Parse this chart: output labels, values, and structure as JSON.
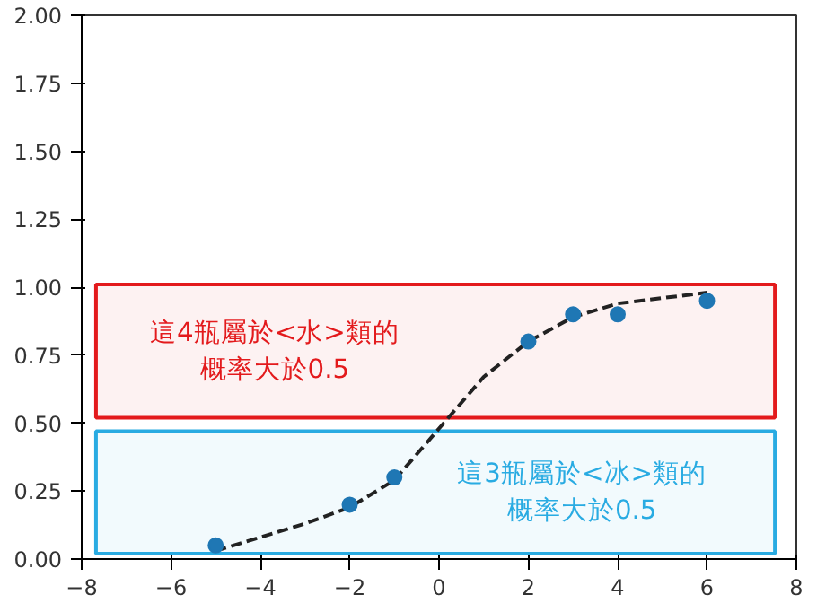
{
  "chart_data": {
    "type": "scatter",
    "xlim": [
      -8,
      8
    ],
    "ylim": [
      0,
      2
    ],
    "xticks": [
      {
        "value": -8,
        "label": "−8"
      },
      {
        "value": -6,
        "label": "−6"
      },
      {
        "value": -4,
        "label": "−4"
      },
      {
        "value": -2,
        "label": "−2"
      },
      0,
      2,
      4,
      6,
      8
    ],
    "yticks": [
      {
        "value": 0,
        "label": "0.00"
      },
      {
        "value": 0.25,
        "label": "0.25"
      },
      {
        "value": 0.5,
        "label": "0.50"
      },
      {
        "value": 0.75,
        "label": "0.75"
      },
      {
        "value": 1,
        "label": "1.00"
      },
      {
        "value": 1.25,
        "label": "1.25"
      },
      {
        "value": 1.5,
        "label": "1.50"
      },
      {
        "value": 1.75,
        "label": "1.75"
      },
      {
        "value": 2,
        "label": "2.00"
      }
    ],
    "grid": false,
    "marker": "circle",
    "series": [
      {
        "color": "#1f77b4",
        "x": [
          -5,
          -2,
          -1,
          2,
          3,
          4,
          6
        ],
        "values": [
          0.05,
          0.2,
          0.3,
          0.8,
          0.9,
          0.9,
          0.95
        ]
      },
      {
        "type": "line",
        "color": "#222222",
        "line_style": "dashed",
        "marker": "none",
        "x": [
          -5,
          -4,
          -3,
          -2,
          -1,
          0,
          1,
          2,
          3,
          4,
          5,
          6
        ],
        "values": [
          0.03,
          0.08,
          0.13,
          0.19,
          0.29,
          0.48,
          0.67,
          0.8,
          0.89,
          0.94,
          0.96,
          0.98
        ]
      }
    ],
    "bands": [
      {
        "axis": "y",
        "from": 0.52,
        "to": 1.01,
        "label": "這4瓶屬於<水>類的概率大於0.5",
        "color": "#e31a1c"
      },
      {
        "axis": "y",
        "from": 0.02,
        "to": 0.47,
        "label": "這3瓶屬於<冰>類的概率大於0.5",
        "color": "#29abe2"
      }
    ]
  }
}
